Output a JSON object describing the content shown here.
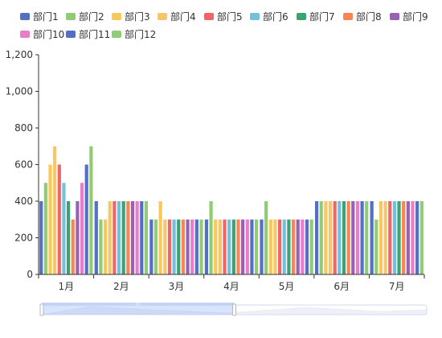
{
  "chart_data": {
    "type": "bar",
    "categories": [
      "1月",
      "2月",
      "3月",
      "4月",
      "5月",
      "6月",
      "7月"
    ],
    "ylim": [
      0,
      1200
    ],
    "yticks": [
      "0",
      "200",
      "400",
      "600",
      "800",
      "1,000",
      "1,200"
    ],
    "grid": false,
    "legend_position": "top-left",
    "series": [
      {
        "name": "部门1",
        "color": "#5470c6",
        "values": [
          400,
          400,
          300,
          300,
          300,
          400,
          400
        ]
      },
      {
        "name": "部门2",
        "color": "#91cc75",
        "values": [
          500,
          300,
          300,
          400,
          400,
          400,
          300
        ]
      },
      {
        "name": "部门3",
        "color": "#fac858",
        "values": [
          600,
          300,
          400,
          300,
          300,
          400,
          400
        ]
      },
      {
        "name": "部门4",
        "color": "#f5c66b",
        "values": [
          700,
          400,
          300,
          300,
          300,
          400,
          400
        ]
      },
      {
        "name": "部门5",
        "color": "#ee6666",
        "values": [
          600,
          400,
          300,
          300,
          300,
          400,
          400
        ]
      },
      {
        "name": "部门6",
        "color": "#73c0de",
        "values": [
          500,
          400,
          300,
          300,
          300,
          400,
          400
        ]
      },
      {
        "name": "部门7",
        "color": "#3ba272",
        "values": [
          400,
          400,
          300,
          300,
          300,
          400,
          400
        ]
      },
      {
        "name": "部门8",
        "color": "#fc8452",
        "values": [
          300,
          400,
          300,
          300,
          300,
          400,
          400
        ]
      },
      {
        "name": "部门9",
        "color": "#9a60b4",
        "values": [
          400,
          400,
          300,
          300,
          300,
          400,
          400
        ]
      },
      {
        "name": "部门10",
        "color": "#ea7ccc",
        "values": [
          500,
          400,
          300,
          300,
          300,
          400,
          400
        ]
      },
      {
        "name": "部门11",
        "color": "#5470c6",
        "values": [
          600,
          400,
          300,
          300,
          300,
          400,
          400
        ]
      },
      {
        "name": "部门12",
        "color": "#91cc75",
        "values": [
          700,
          400,
          300,
          300,
          300,
          400,
          400
        ]
      }
    ],
    "datazoom": {
      "start_fraction": 0.0,
      "end_fraction": 0.5,
      "handle_label": "|||"
    }
  }
}
